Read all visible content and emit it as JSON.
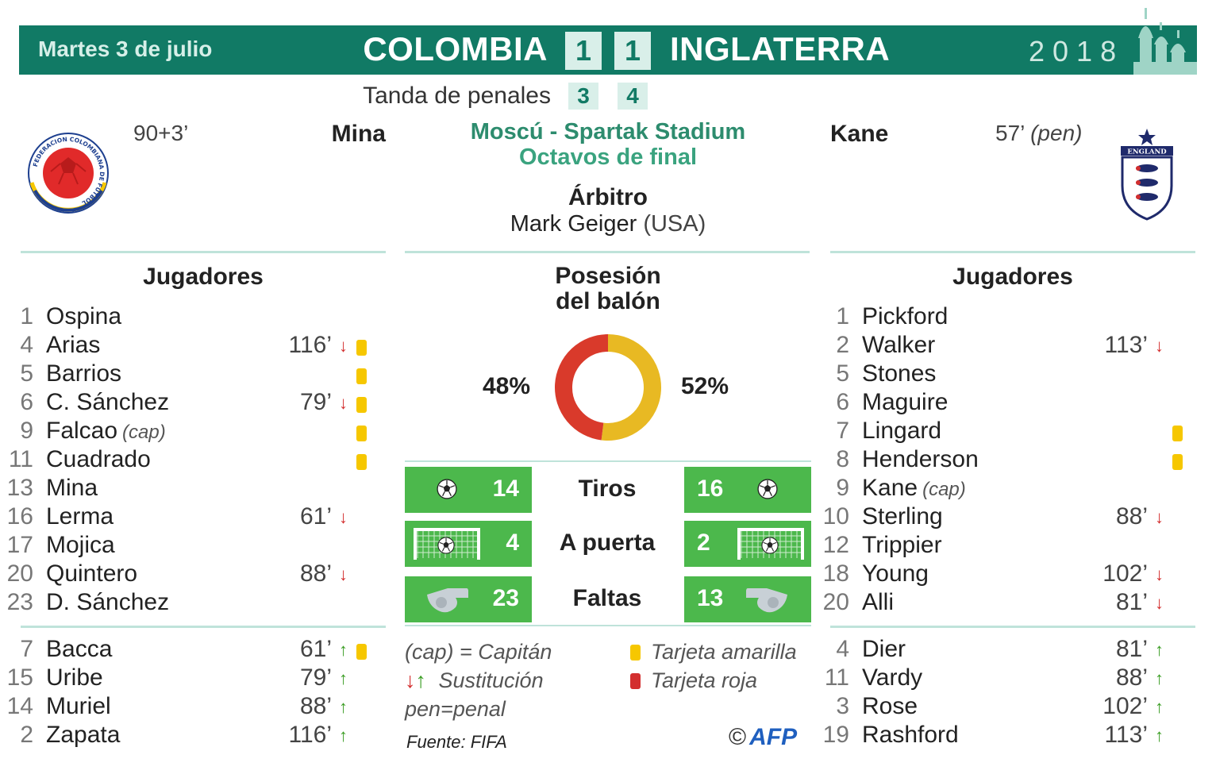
{
  "header": {
    "date": "Martes 3 de julio",
    "home_team": "COLOMBIA",
    "away_team": "INGLATERRA",
    "home_score": "1",
    "away_score": "1",
    "year": "2018"
  },
  "penalties": {
    "label": "Tanda de penales",
    "home": "3",
    "away": "4"
  },
  "goals": {
    "home": {
      "time": "90+3’",
      "scorer": "Mina"
    },
    "away": {
      "scorer": "Kane",
      "time": "57’",
      "note": "(pen)"
    }
  },
  "venue": {
    "location": "Moscú - Spartak Stadium",
    "stage": "Octavos de final"
  },
  "referee": {
    "title": "Árbitro",
    "name": "Mark Geiger",
    "country": "(USA)"
  },
  "crests": {
    "away_text": "ENGLAND",
    "home_ring_text": "FEDERACION COLOMBIANA DE FUTBOL"
  },
  "home_lineup": {
    "title": "Jugadores",
    "starters": [
      {
        "num": "1",
        "name": "Ospina",
        "time": "",
        "sub": "",
        "card": ""
      },
      {
        "num": "4",
        "name": "Arias",
        "time": "116’",
        "sub": "out",
        "card": "yellow"
      },
      {
        "num": "5",
        "name": "Barrios",
        "time": "",
        "sub": "",
        "card": "yellow"
      },
      {
        "num": "6",
        "name": "C. Sánchez",
        "time": "79’",
        "sub": "out",
        "card": "yellow"
      },
      {
        "num": "9",
        "name": "Falcao",
        "cap": "(cap)",
        "time": "",
        "sub": "",
        "card": "yellow"
      },
      {
        "num": "11",
        "name": "Cuadrado",
        "time": "",
        "sub": "",
        "card": "yellow"
      },
      {
        "num": "13",
        "name": "Mina",
        "time": "",
        "sub": "",
        "card": ""
      },
      {
        "num": "16",
        "name": "Lerma",
        "time": "61’",
        "sub": "out",
        "card": ""
      },
      {
        "num": "17",
        "name": "Mojica",
        "time": "",
        "sub": "",
        "card": ""
      },
      {
        "num": "20",
        "name": "Quintero",
        "time": "88’",
        "sub": "out",
        "card": ""
      },
      {
        "num": "23",
        "name": "D. Sánchez",
        "time": "",
        "sub": "",
        "card": ""
      }
    ],
    "subs": [
      {
        "num": "7",
        "name": "Bacca",
        "time": "61’",
        "sub": "in",
        "card": "yellow"
      },
      {
        "num": "15",
        "name": "Uribe",
        "time": "79’",
        "sub": "in",
        "card": ""
      },
      {
        "num": "14",
        "name": "Muriel",
        "time": "88’",
        "sub": "in",
        "card": ""
      },
      {
        "num": "2",
        "name": "Zapata",
        "time": "116’",
        "sub": "in",
        "card": ""
      }
    ]
  },
  "away_lineup": {
    "title": "Jugadores",
    "starters": [
      {
        "num": "1",
        "name": "Pickford",
        "time": "",
        "sub": "",
        "card": ""
      },
      {
        "num": "2",
        "name": "Walker",
        "time": "113’",
        "sub": "out",
        "card": ""
      },
      {
        "num": "5",
        "name": "Stones",
        "time": "",
        "sub": "",
        "card": ""
      },
      {
        "num": "6",
        "name": "Maguire",
        "time": "",
        "sub": "",
        "card": ""
      },
      {
        "num": "7",
        "name": "Lingard",
        "time": "",
        "sub": "",
        "card": "yellow"
      },
      {
        "num": "8",
        "name": "Henderson",
        "time": "",
        "sub": "",
        "card": "yellow"
      },
      {
        "num": "9",
        "name": "Kane",
        "cap": "(cap)",
        "time": "",
        "sub": "",
        "card": ""
      },
      {
        "num": "10",
        "name": "Sterling",
        "time": "88’",
        "sub": "out",
        "card": ""
      },
      {
        "num": "12",
        "name": "Trippier",
        "time": "",
        "sub": "",
        "card": ""
      },
      {
        "num": "18",
        "name": "Young",
        "time": "102’",
        "sub": "out",
        "card": ""
      },
      {
        "num": "20",
        "name": "Alli",
        "time": "81’",
        "sub": "out",
        "card": ""
      }
    ],
    "subs": [
      {
        "num": "4",
        "name": "Dier",
        "time": "81’",
        "sub": "in",
        "card": ""
      },
      {
        "num": "11",
        "name": "Vardy",
        "time": "88’",
        "sub": "in",
        "card": ""
      },
      {
        "num": "3",
        "name": "Rose",
        "time": "102’",
        "sub": "in",
        "card": ""
      },
      {
        "num": "19",
        "name": "Rashford",
        "time": "113’",
        "sub": "in",
        "card": ""
      }
    ]
  },
  "possession": {
    "title_line1": "Posesión",
    "title_line2": "del balón",
    "home_label": "48%",
    "away_label": "52%",
    "home_value": 48,
    "away_value": 52,
    "home_color": "#d93a2b",
    "away_color": "#e8b923"
  },
  "stats": [
    {
      "label": "Tiros",
      "home": "14",
      "away": "16",
      "icon": "ball-icon"
    },
    {
      "label": "A puerta",
      "home": "4",
      "away": "2",
      "icon": "goal-icon"
    },
    {
      "label": "Faltas",
      "home": "23",
      "away": "13",
      "icon": "whistle-icon"
    }
  ],
  "legend": {
    "captain": "(cap) = Capitán",
    "substitution": "Sustitución",
    "penalty": "pen=penal",
    "yellow": "Tarjeta amarilla",
    "red": "Tarjeta roja",
    "source": "Fuente: FIFA",
    "credit": "AFP",
    "copyright": "©"
  },
  "colors": {
    "header_green": "#117a65",
    "stat_green": "#4cb84c",
    "yellow_card": "#f6c700",
    "red_card": "#d32f2f",
    "arrow_down": "#d32f2f",
    "arrow_up": "#3a9d23"
  }
}
